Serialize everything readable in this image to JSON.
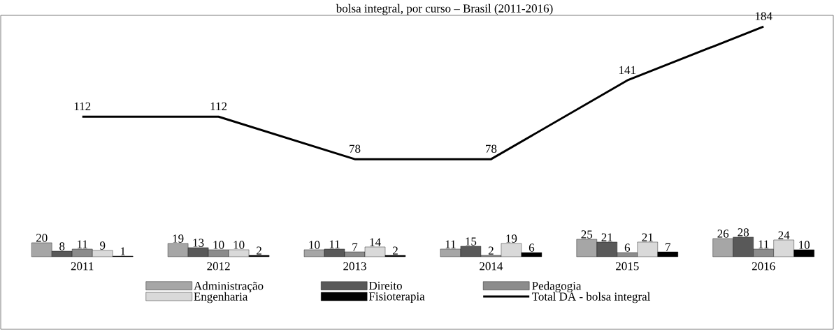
{
  "chart_data": [
    {
      "type": "line",
      "title": "bolsa integral, por curso – Brasil (2011-2016)",
      "categories": [
        "2011",
        "2012",
        "2013",
        "2014",
        "2015",
        "2016"
      ],
      "series": [
        {
          "name": "Total DA - bolsa integral",
          "color": "#000000",
          "values": [
            112,
            112,
            78,
            78,
            141,
            184
          ]
        }
      ],
      "tick_labels": false,
      "data_labels": true
    },
    {
      "type": "bar",
      "categories": [
        "2011",
        "2012",
        "2013",
        "2014",
        "2015",
        "2016"
      ],
      "series": [
        {
          "name": "Administração",
          "color": "#a6a6a6",
          "values": [
            20,
            19,
            10,
            11,
            25,
            26
          ]
        },
        {
          "name": "Direito",
          "color": "#595959",
          "values": [
            8,
            13,
            11,
            15,
            21,
            28
          ]
        },
        {
          "name": "Pedagogia",
          "color": "#8c8c8c",
          "values": [
            11,
            10,
            7,
            2,
            6,
            11
          ]
        },
        {
          "name": "Engenharia",
          "color": "#d9d9d9",
          "values": [
            9,
            10,
            14,
            19,
            21,
            24
          ]
        },
        {
          "name": "Fisioterapia",
          "color": "#000000",
          "values": [
            1,
            2,
            2,
            6,
            7,
            10
          ]
        }
      ],
      "tick_labels": "x",
      "data_labels": true,
      "legend": "bottom"
    }
  ]
}
